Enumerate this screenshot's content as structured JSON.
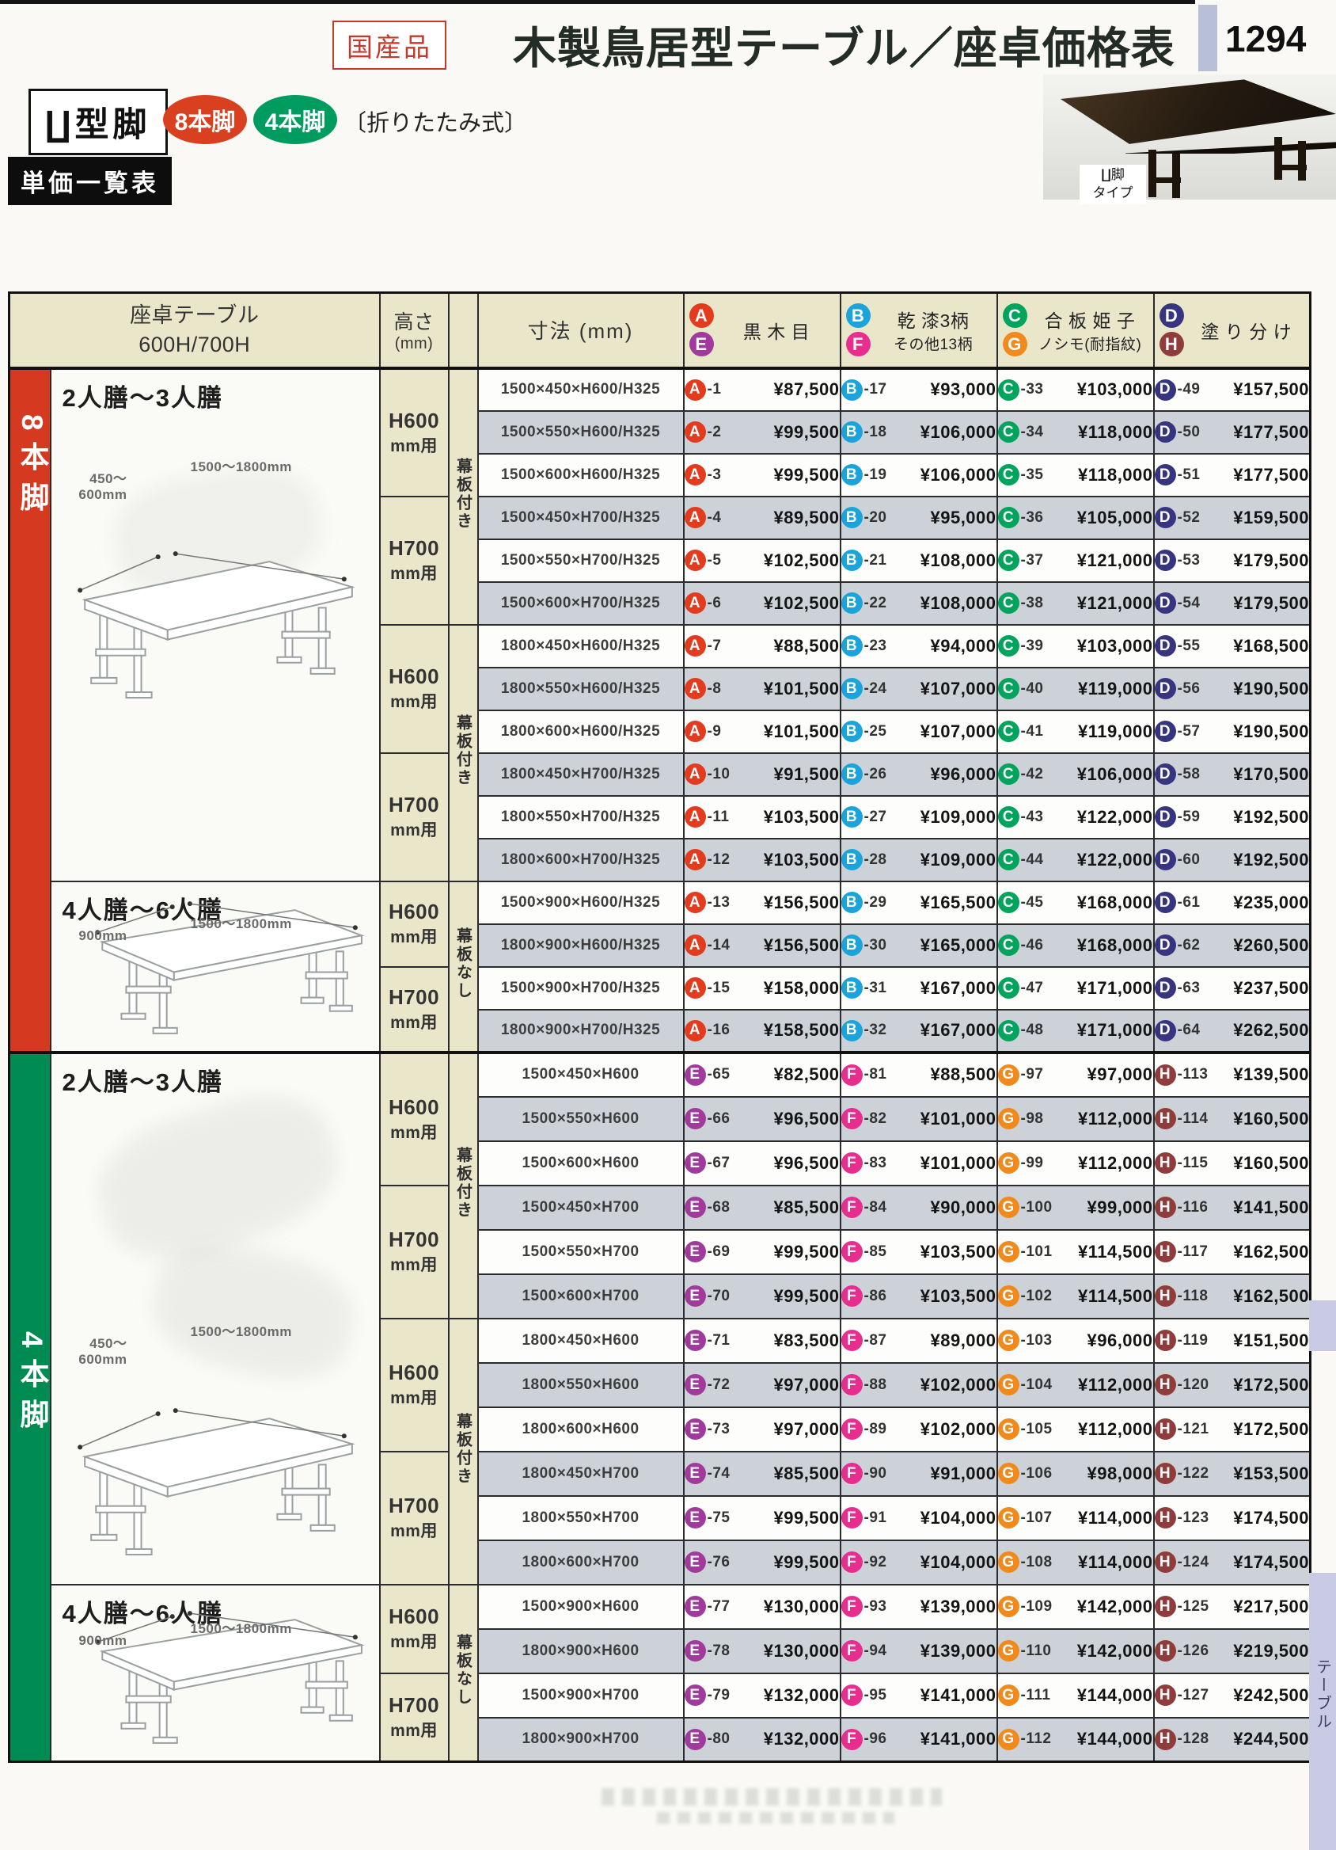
{
  "page": {
    "number": "1294",
    "origin_badge": "国産品",
    "title": "木製鳥居型テーブル／座卓価格表",
    "leg_type_box": "∐型脚",
    "leg8_badge": "8本脚",
    "leg4_badge": "4本脚",
    "folding_note": "〔折りたたみ式〕",
    "photo_caption_line1": "∐脚",
    "photo_caption_line2": "タイプ",
    "price_list_badge": "単価一覧表",
    "side_tab": "テーブル",
    "accent_red": "#d9401f",
    "accent_green": "#009b5e"
  },
  "table": {
    "header": {
      "product_line1": "座卓テーブル",
      "product_line2": "600H/700H",
      "height_line1": "高さ",
      "height_line2": "(mm)",
      "size_label": "寸法 (mm)",
      "columns": [
        {
          "badge1": "A",
          "color1": "#e23b1e",
          "badge2": "E",
          "color2": "#a03a9c",
          "label1": "黒 木 目",
          "label2": ""
        },
        {
          "badge1": "B",
          "color1": "#1ba3dc",
          "badge2": "F",
          "color2": "#e72e8e",
          "label1": "乾 漆3柄",
          "label2": "その他13柄"
        },
        {
          "badge1": "C",
          "color1": "#00a45c",
          "badge2": "G",
          "color2": "#f08a1d",
          "label1": "合 板 姫 子",
          "label2": "ノシモ(耐指紋)"
        },
        {
          "badge1": "D",
          "color1": "#37357f",
          "badge2": "H",
          "color2": "#8f3d3c",
          "label1": "塗 り 分 け",
          "label2": ""
        }
      ]
    },
    "sections": [
      {
        "name": "8本脚",
        "color": "#d5391f",
        "letters": [
          {
            "ch": "A",
            "color": "#e23b1e"
          },
          {
            "ch": "B",
            "color": "#1ba3dc"
          },
          {
            "ch": "C",
            "color": "#00a45c"
          },
          {
            "ch": "D",
            "color": "#37357f"
          }
        ],
        "groups": [
          {
            "rows": 12,
            "label": "2人膳〜3人膳",
            "depth_label": "450〜",
            "depth_label2": "600mm",
            "width_label": "1500〜1800mm",
            "shape": "shallow"
          },
          {
            "rows": 4,
            "label": "4人膳〜6人膳",
            "depth_label": "900mm",
            "depth_label2": "",
            "width_label": "1500〜1800mm",
            "shape": "deep"
          }
        ],
        "heights": [
          {
            "rows": 3,
            "label": "H600",
            "sub": "mm用"
          },
          {
            "rows": 3,
            "label": "H700",
            "sub": "mm用"
          },
          {
            "rows": 3,
            "label": "H600",
            "sub": "mm用"
          },
          {
            "rows": 3,
            "label": "H700",
            "sub": "mm用"
          },
          {
            "rows": 2,
            "label": "H600",
            "sub": "mm用"
          },
          {
            "rows": 2,
            "label": "H700",
            "sub": "mm用"
          }
        ],
        "skirts": [
          {
            "rows": 6,
            "label": "幕板付き"
          },
          {
            "rows": 6,
            "label": "幕板付き"
          },
          {
            "rows": 4,
            "label": "幕板なし"
          }
        ],
        "rows": [
          {
            "size": "1500×450×H600/H325",
            "nums": [
              "-1",
              "-17",
              "-33",
              "-49"
            ],
            "prices": [
              "¥87,500",
              "¥93,000",
              "¥103,000",
              "¥157,500"
            ]
          },
          {
            "size": "1500×550×H600/H325",
            "nums": [
              "-2",
              "-18",
              "-34",
              "-50"
            ],
            "prices": [
              "¥99,500",
              "¥106,000",
              "¥118,000",
              "¥177,500"
            ]
          },
          {
            "size": "1500×600×H600/H325",
            "nums": [
              "-3",
              "-19",
              "-35",
              "-51"
            ],
            "prices": [
              "¥99,500",
              "¥106,000",
              "¥118,000",
              "¥177,500"
            ]
          },
          {
            "size": "1500×450×H700/H325",
            "nums": [
              "-4",
              "-20",
              "-36",
              "-52"
            ],
            "prices": [
              "¥89,500",
              "¥95,000",
              "¥105,000",
              "¥159,500"
            ]
          },
          {
            "size": "1500×550×H700/H325",
            "nums": [
              "-5",
              "-21",
              "-37",
              "-53"
            ],
            "prices": [
              "¥102,500",
              "¥108,000",
              "¥121,000",
              "¥179,500"
            ]
          },
          {
            "size": "1500×600×H700/H325",
            "nums": [
              "-6",
              "-22",
              "-38",
              "-54"
            ],
            "prices": [
              "¥102,500",
              "¥108,000",
              "¥121,000",
              "¥179,500"
            ]
          },
          {
            "size": "1800×450×H600/H325",
            "nums": [
              "-7",
              "-23",
              "-39",
              "-55"
            ],
            "prices": [
              "¥88,500",
              "¥94,000",
              "¥103,000",
              "¥168,500"
            ]
          },
          {
            "size": "1800×550×H600/H325",
            "nums": [
              "-8",
              "-24",
              "-40",
              "-56"
            ],
            "prices": [
              "¥101,500",
              "¥107,000",
              "¥119,000",
              "¥190,500"
            ]
          },
          {
            "size": "1800×600×H600/H325",
            "nums": [
              "-9",
              "-25",
              "-41",
              "-57"
            ],
            "prices": [
              "¥101,500",
              "¥107,000",
              "¥119,000",
              "¥190,500"
            ]
          },
          {
            "size": "1800×450×H700/H325",
            "nums": [
              "-10",
              "-26",
              "-42",
              "-58"
            ],
            "prices": [
              "¥91,500",
              "¥96,000",
              "¥106,000",
              "¥170,500"
            ]
          },
          {
            "size": "1800×550×H700/H325",
            "nums": [
              "-11",
              "-27",
              "-43",
              "-59"
            ],
            "prices": [
              "¥103,500",
              "¥109,000",
              "¥122,000",
              "¥192,500"
            ]
          },
          {
            "size": "1800×600×H700/H325",
            "nums": [
              "-12",
              "-28",
              "-44",
              "-60"
            ],
            "prices": [
              "¥103,500",
              "¥109,000",
              "¥122,000",
              "¥192,500"
            ]
          },
          {
            "size": "1500×900×H600/H325",
            "nums": [
              "-13",
              "-29",
              "-45",
              "-61"
            ],
            "prices": [
              "¥156,500",
              "¥165,500",
              "¥168,000",
              "¥235,000"
            ]
          },
          {
            "size": "1800×900×H600/H325",
            "nums": [
              "-14",
              "-30",
              "-46",
              "-62"
            ],
            "prices": [
              "¥156,500",
              "¥165,000",
              "¥168,000",
              "¥260,500"
            ]
          },
          {
            "size": "1500×900×H700/H325",
            "nums": [
              "-15",
              "-31",
              "-47",
              "-63"
            ],
            "prices": [
              "¥158,000",
              "¥167,000",
              "¥171,000",
              "¥237,500"
            ]
          },
          {
            "size": "1800×900×H700/H325",
            "nums": [
              "-16",
              "-32",
              "-48",
              "-64"
            ],
            "prices": [
              "¥158,500",
              "¥167,000",
              "¥171,000",
              "¥262,500"
            ]
          }
        ]
      },
      {
        "name": "4本脚",
        "color": "#008b52",
        "letters": [
          {
            "ch": "E",
            "color": "#a03a9c"
          },
          {
            "ch": "F",
            "color": "#e72e8e"
          },
          {
            "ch": "G",
            "color": "#f08a1d"
          },
          {
            "ch": "H",
            "color": "#8f3d3c"
          }
        ],
        "groups": [
          {
            "rows": 12,
            "label": "2人膳〜3人膳",
            "depth_label": "450〜",
            "depth_label2": "600mm",
            "width_label": "1500〜1800mm",
            "shape": "shallow"
          },
          {
            "rows": 4,
            "label": "4人膳〜6人膳",
            "depth_label": "900mm",
            "depth_label2": "",
            "width_label": "1500〜1800mm",
            "shape": "deep"
          }
        ],
        "heights": [
          {
            "rows": 3,
            "label": "H600",
            "sub": "mm用"
          },
          {
            "rows": 3,
            "label": "H700",
            "sub": "mm用"
          },
          {
            "rows": 3,
            "label": "H600",
            "sub": "mm用"
          },
          {
            "rows": 3,
            "label": "H700",
            "sub": "mm用"
          },
          {
            "rows": 2,
            "label": "H600",
            "sub": "mm用"
          },
          {
            "rows": 2,
            "label": "H700",
            "sub": "mm用"
          }
        ],
        "skirts": [
          {
            "rows": 6,
            "label": "幕板付き"
          },
          {
            "rows": 6,
            "label": "幕板付き"
          },
          {
            "rows": 4,
            "label": "幕板なし"
          }
        ],
        "rows": [
          {
            "size": "1500×450×H600",
            "nums": [
              "-65",
              "-81",
              "-97",
              "-113"
            ],
            "prices": [
              "¥82,500",
              "¥88,500",
              "¥97,000",
              "¥139,500"
            ]
          },
          {
            "size": "1500×550×H600",
            "nums": [
              "-66",
              "-82",
              "-98",
              "-114"
            ],
            "prices": [
              "¥96,500",
              "¥101,000",
              "¥112,000",
              "¥160,500"
            ]
          },
          {
            "size": "1500×600×H600",
            "nums": [
              "-67",
              "-83",
              "-99",
              "-115"
            ],
            "prices": [
              "¥96,500",
              "¥101,000",
              "¥112,000",
              "¥160,500"
            ]
          },
          {
            "size": "1500×450×H700",
            "nums": [
              "-68",
              "-84",
              "-100",
              "-116"
            ],
            "prices": [
              "¥85,500",
              "¥90,000",
              "¥99,000",
              "¥141,500"
            ]
          },
          {
            "size": "1500×550×H700",
            "nums": [
              "-69",
              "-85",
              "-101",
              "-117"
            ],
            "prices": [
              "¥99,500",
              "¥103,500",
              "¥114,500",
              "¥162,500"
            ]
          },
          {
            "size": "1500×600×H700",
            "nums": [
              "-70",
              "-86",
              "-102",
              "-118"
            ],
            "prices": [
              "¥99,500",
              "¥103,500",
              "¥114,500",
              "¥162,500"
            ]
          },
          {
            "size": "1800×450×H600",
            "nums": [
              "-71",
              "-87",
              "-103",
              "-119"
            ],
            "prices": [
              "¥83,500",
              "¥89,000",
              "¥96,000",
              "¥151,500"
            ]
          },
          {
            "size": "1800×550×H600",
            "nums": [
              "-72",
              "-88",
              "-104",
              "-120"
            ],
            "prices": [
              "¥97,000",
              "¥102,000",
              "¥112,000",
              "¥172,500"
            ]
          },
          {
            "size": "1800×600×H600",
            "nums": [
              "-73",
              "-89",
              "-105",
              "-121"
            ],
            "prices": [
              "¥97,000",
              "¥102,000",
              "¥112,000",
              "¥172,500"
            ]
          },
          {
            "size": "1800×450×H700",
            "nums": [
              "-74",
              "-90",
              "-106",
              "-122"
            ],
            "prices": [
              "¥85,500",
              "¥91,000",
              "¥98,000",
              "¥153,500"
            ]
          },
          {
            "size": "1800×550×H700",
            "nums": [
              "-75",
              "-91",
              "-107",
              "-123"
            ],
            "prices": [
              "¥99,500",
              "¥104,000",
              "¥114,000",
              "¥174,500"
            ]
          },
          {
            "size": "1800×600×H700",
            "nums": [
              "-76",
              "-92",
              "-108",
              "-124"
            ],
            "prices": [
              "¥99,500",
              "¥104,000",
              "¥114,000",
              "¥174,500"
            ]
          },
          {
            "size": "1500×900×H600",
            "nums": [
              "-77",
              "-93",
              "-109",
              "-125"
            ],
            "prices": [
              "¥130,000",
              "¥139,000",
              "¥142,000",
              "¥217,500"
            ]
          },
          {
            "size": "1800×900×H600",
            "nums": [
              "-78",
              "-94",
              "-110",
              "-126"
            ],
            "prices": [
              "¥130,000",
              "¥139,000",
              "¥142,000",
              "¥219,500"
            ]
          },
          {
            "size": "1500×900×H700",
            "nums": [
              "-79",
              "-95",
              "-111",
              "-127"
            ],
            "prices": [
              "¥132,000",
              "¥141,000",
              "¥144,000",
              "¥242,500"
            ]
          },
          {
            "size": "1800×900×H700",
            "nums": [
              "-80",
              "-96",
              "-112",
              "-128"
            ],
            "prices": [
              "¥132,000",
              "¥141,000",
              "¥144,000",
              "¥244,500"
            ]
          }
        ]
      }
    ]
  }
}
